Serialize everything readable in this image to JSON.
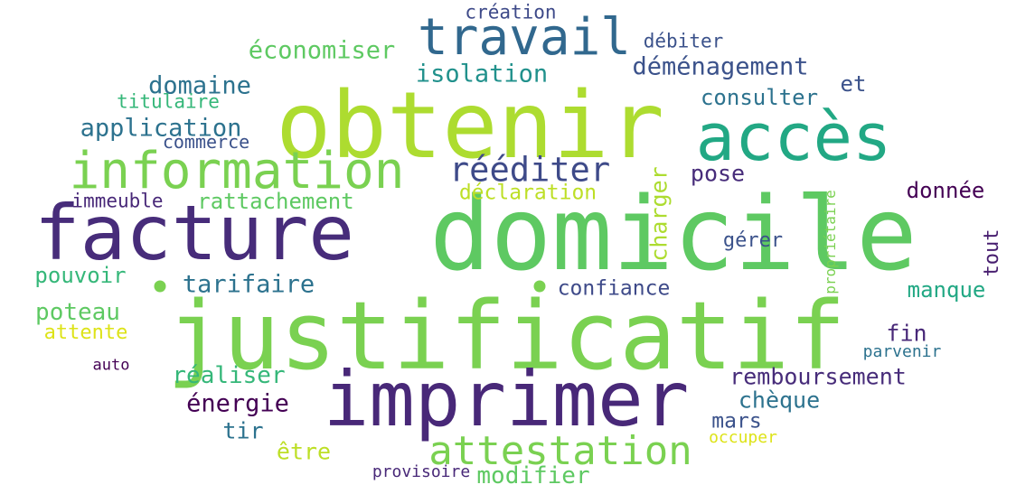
{
  "words": [
    {
      "text": "domicile",
      "color": "#5ec962"
    },
    {
      "text": "justificatif",
      "color": "#7ad151"
    },
    {
      "text": "obtenir",
      "color": "#addc30"
    },
    {
      "text": "imprimer",
      "color": "#482878"
    },
    {
      "text": "facture",
      "color": "#472c7a"
    },
    {
      "text": "accès",
      "color": "#22a884"
    },
    {
      "text": "information",
      "color": "#7ad151"
    },
    {
      "text": "travail",
      "color": "#31688e"
    },
    {
      "text": "attestation",
      "color": "#7ad151"
    },
    {
      "text": "rééditer",
      "color": "#3e4a89"
    },
    {
      "text": "déménagement",
      "color": "#3b528b"
    },
    {
      "text": "économiser",
      "color": "#5ec962"
    },
    {
      "text": "isolation",
      "color": "#21918c"
    },
    {
      "text": "domaine",
      "color": "#2c728e"
    },
    {
      "text": "application",
      "color": "#2c728e"
    },
    {
      "text": "consulter",
      "color": "#2c728e"
    },
    {
      "text": "création",
      "color": "#3e4a89"
    },
    {
      "text": "débiter",
      "color": "#3b528b"
    },
    {
      "text": "et",
      "color": "#3b528b"
    },
    {
      "text": "titulaire",
      "color": "#35b779"
    },
    {
      "text": "commerce",
      "color": "#3b528b"
    },
    {
      "text": "immeuble",
      "color": "#482878"
    },
    {
      "text": "rattachement",
      "color": "#5ec962"
    },
    {
      "text": "déclaration",
      "color": "#bddf26"
    },
    {
      "text": "charger",
      "color": "#addc30"
    },
    {
      "text": "pose",
      "color": "#472c7a"
    },
    {
      "text": "donnée",
      "color": "#440154"
    },
    {
      "text": "pouvoir",
      "color": "#35b779"
    },
    {
      "text": "tarifaire",
      "color": "#2c728e"
    },
    {
      "text": "confiance",
      "color": "#3e4a89"
    },
    {
      "text": "gérer",
      "color": "#3b528b"
    },
    {
      "text": "tout",
      "color": "#481f70"
    },
    {
      "text": "manque",
      "color": "#22a884"
    },
    {
      "text": "propriétaire",
      "color": "#7ad151"
    },
    {
      "text": "poteau",
      "color": "#5ec962"
    },
    {
      "text": "attente",
      "color": "#dde318"
    },
    {
      "text": "fin",
      "color": "#482878"
    },
    {
      "text": "parvenir",
      "color": "#2c728e"
    },
    {
      "text": "auto",
      "color": "#440154"
    },
    {
      "text": "réaliser",
      "color": "#35b779"
    },
    {
      "text": "remboursement",
      "color": "#472c7a"
    },
    {
      "text": "énergie",
      "color": "#440154"
    },
    {
      "text": "chèque",
      "color": "#2c728e"
    },
    {
      "text": "tir",
      "color": "#2c728e"
    },
    {
      "text": "mars",
      "color": "#3b528b"
    },
    {
      "text": "être",
      "color": "#bddf26"
    },
    {
      "text": "occuper",
      "color": "#dde318"
    },
    {
      "text": "provisoire",
      "color": "#482878"
    },
    {
      "text": "modifier",
      "color": "#5ec962"
    }
  ],
  "dots": [
    {
      "color": "#7ad151"
    },
    {
      "color": "#7ad151"
    }
  ]
}
